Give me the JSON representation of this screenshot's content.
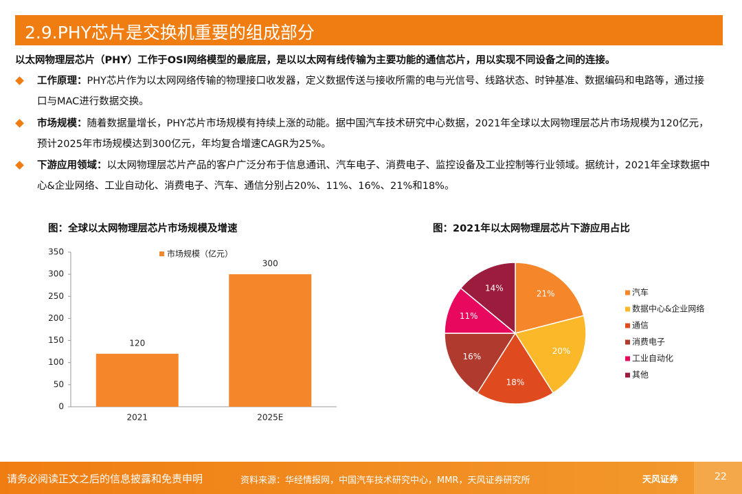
{
  "header": {
    "title": "2.9.PHY芯片是交换机重要的组成部分"
  },
  "intro": "以太网物理层芯片（PHY）工作于OSI网络模型的最底层，是以以太网有线传输为主要功能的通信芯片，用以实现不同设备之间的连接。",
  "bullets": [
    {
      "label": "工作原理：",
      "text": "PHY芯片作为以太网网络传输的物理接口收发器，定义数据传送与接收所需的电与光信号、线路状态、时钟基准、数据编码和电路等，通过接口与MAC进行数据交换。"
    },
    {
      "label": "市场规模：",
      "text": "随着数据量增长，PHY芯片市场规模有持续上涨的动能。据中国汽车技术研究中心数据，2021年全球以太网物理层芯片市场规模为120亿元，预计2025年市场规模达到300亿元，年均复合增速CAGR为25%。"
    },
    {
      "label": "下游应用领域：",
      "text": "以太网物理层芯片产品的客户广泛分布于信息通讯、汽车电子、消费电子、监控设备及工业控制等行业领域。据统计，2021年全球数据中心&企业网络、工业自动化、消费电子、汽车、通信分别占20%、11%、16%、21%和18%。"
    }
  ],
  "chart_data": [
    {
      "type": "bar",
      "title": "图：全球以太网物理层芯片市场规模及增速",
      "categories": [
        "2021",
        "2025E"
      ],
      "series": [
        {
          "name": "市场规模（亿元）",
          "color": "#f5862a",
          "values": [
            120,
            300
          ]
        }
      ],
      "ylim": [
        0,
        350
      ],
      "yticks": [
        0,
        50,
        100,
        150,
        200,
        250,
        300,
        350
      ]
    },
    {
      "type": "pie",
      "title": "图：2021年以太网物理层芯片下游应用占比",
      "categories": [
        "汽车",
        "数据中心&企业网络",
        "通信",
        "消费电子",
        "工业自动化",
        "其他"
      ],
      "values": [
        21,
        20,
        18,
        16,
        11,
        14
      ],
      "value_labels": [
        "21%",
        "20%",
        "18%",
        "16%",
        "11%",
        "14%"
      ],
      "colors": [
        "#f5862a",
        "#fbb829",
        "#e04a1f",
        "#b03a2e",
        "#e8095e",
        "#9b1c3c"
      ]
    }
  ],
  "footer": {
    "disclaimer": "请务必阅读正文之后的信息披露和免责申明",
    "source": "资料来源：华经情报网，中国汽车技术研究中心，MMR，天风证券研究所",
    "logo": "天风证券",
    "page": "22"
  }
}
